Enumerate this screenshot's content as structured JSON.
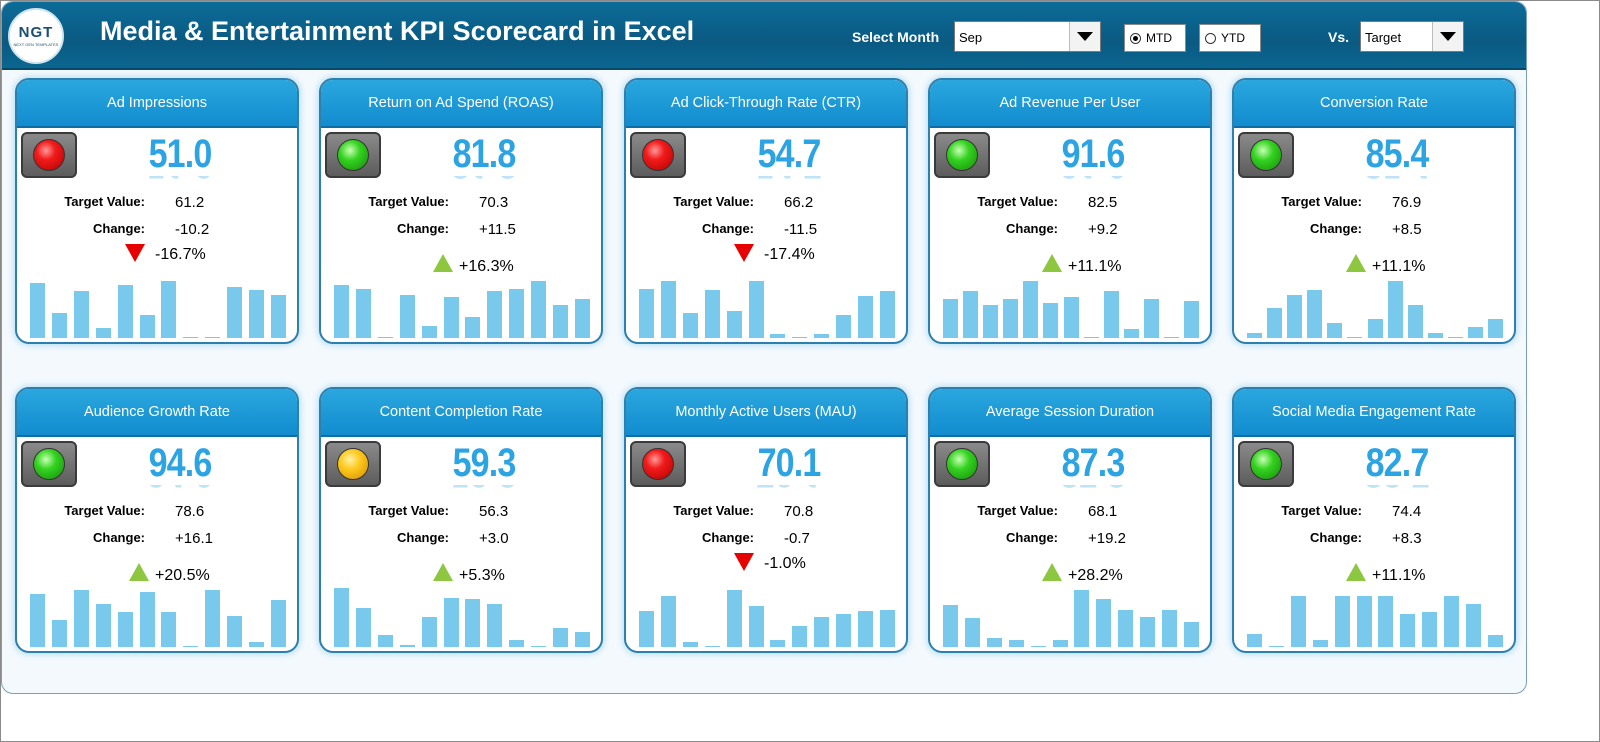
{
  "header": {
    "logo_text": "NGT",
    "logo_sub": "NEXT GEN TEMPLATES",
    "title": "Media & Entertainment KPI Scorecard in Excel",
    "select_month_label": "Select Month",
    "month_value": "Sep",
    "mtd_label": "MTD",
    "ytd_label": "YTD",
    "mtd_selected": true,
    "vs_label": "Vs.",
    "vs_value": "Target"
  },
  "labels": {
    "target": "Target Value:",
    "change": "Change:"
  },
  "colors": {
    "bar": "#79c9ec",
    "up_arrow": "#8dc63f",
    "down_arrow": "#e60000",
    "value": "#2ca3e3"
  },
  "cards": [
    {
      "title": "Ad Impressions",
      "value": "51.0",
      "target": "61.2",
      "change": "-10.2",
      "pct": "-16.7%",
      "direction": "down",
      "light": "red",
      "bars": [
        0.92,
        0.42,
        0.78,
        0.17,
        0.88,
        0.38,
        0.95,
        0.02,
        0.02,
        0.85,
        0.8,
        0.72
      ]
    },
    {
      "title": "Return on Ad Spend (ROAS)",
      "value": "81.8",
      "target": "70.3",
      "change": "+11.5",
      "pct": "+16.3%",
      "direction": "up",
      "light": "green",
      "bars": [
        0.88,
        0.82,
        0.02,
        0.72,
        0.2,
        0.68,
        0.35,
        0.78,
        0.82,
        0.95,
        0.55,
        0.65
      ]
    },
    {
      "title": "Ad Click-Through Rate (CTR)",
      "value": "54.7",
      "target": "66.2",
      "change": "-11.5",
      "pct": "-17.4%",
      "direction": "down",
      "light": "red",
      "bars": [
        0.82,
        0.95,
        0.42,
        0.8,
        0.45,
        0.95,
        0.06,
        0.02,
        0.06,
        0.38,
        0.7,
        0.78
      ]
    },
    {
      "title": "Ad Revenue Per User",
      "value": "91.6",
      "target": "82.5",
      "change": "+9.2",
      "pct": "+11.1%",
      "direction": "up",
      "light": "green",
      "bars": [
        0.65,
        0.78,
        0.55,
        0.65,
        0.95,
        0.58,
        0.68,
        0.02,
        0.78,
        0.15,
        0.65,
        0.02,
        0.62
      ]
    },
    {
      "title": "Conversion Rate",
      "value": "85.4",
      "target": "76.9",
      "change": "+8.5",
      "pct": "+11.1%",
      "direction": "up",
      "light": "green",
      "bars": [
        0.08,
        0.5,
        0.72,
        0.8,
        0.25,
        0.02,
        0.32,
        0.95,
        0.55,
        0.08,
        0.02,
        0.18,
        0.32
      ]
    },
    {
      "title": "Audience Growth Rate",
      "value": "94.6",
      "target": "78.6",
      "change": "+16.1",
      "pct": "+20.5%",
      "direction": "up",
      "light": "green",
      "bars": [
        0.88,
        0.45,
        0.95,
        0.72,
        0.58,
        0.92,
        0.58,
        0.02,
        0.95,
        0.52,
        0.08,
        0.78
      ]
    },
    {
      "title": "Content Completion Rate",
      "value": "59.3",
      "target": "56.3",
      "change": "+3.0",
      "pct": "+5.3%",
      "direction": "up",
      "light": "amber",
      "bars": [
        0.98,
        0.65,
        0.2,
        0.04,
        0.5,
        0.82,
        0.8,
        0.72,
        0.12,
        0.02,
        0.32,
        0.25
      ]
    },
    {
      "title": "Monthly Active Users (MAU)",
      "value": "70.1",
      "target": "70.8",
      "change": "-0.7",
      "pct": "-1.0%",
      "direction": "down",
      "light": "red",
      "bars": [
        0.6,
        0.85,
        0.08,
        0.02,
        0.95,
        0.68,
        0.12,
        0.35,
        0.5,
        0.55,
        0.6,
        0.62
      ]
    },
    {
      "title": "Average Session Duration",
      "value": "87.3",
      "target": "68.1",
      "change": "+19.2",
      "pct": "+28.2%",
      "direction": "up",
      "light": "green",
      "bars": [
        0.7,
        0.48,
        0.15,
        0.12,
        0.02,
        0.12,
        0.95,
        0.8,
        0.62,
        0.5,
        0.62,
        0.42
      ]
    },
    {
      "title": "Social Media Engagement Rate",
      "value": "82.7",
      "target": "74.4",
      "change": "+8.3",
      "pct": "+11.1%",
      "direction": "up",
      "light": "green",
      "bars": [
        0.22,
        0.02,
        0.85,
        0.12,
        0.85,
        0.85,
        0.85,
        0.55,
        0.58,
        0.85,
        0.72,
        0.2
      ]
    }
  ]
}
